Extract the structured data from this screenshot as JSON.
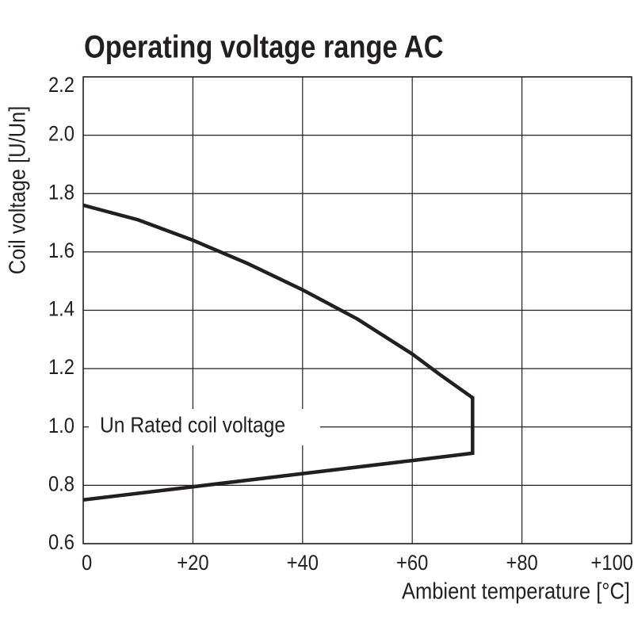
{
  "chart_data": {
    "type": "line",
    "title": "Operating voltage range AC",
    "x_label": "Ambient temperature [°C]",
    "y_label": "Coil voltage [U/Un]",
    "annotation": "Un Rated coil voltage",
    "x": [
      0,
      10,
      20,
      30,
      40,
      50,
      60,
      65,
      71,
      71,
      60,
      40,
      20,
      0
    ],
    "series": [
      {
        "color": "#231f20",
        "values": [
          1.76,
          1.71,
          1.64,
          1.56,
          1.47,
          1.37,
          1.25,
          1.18,
          1.1,
          0.91,
          0.885,
          0.84,
          0.795,
          0.75
        ]
      }
    ],
    "xlim": [
      0,
      100
    ],
    "xticks": [
      0,
      {
        "value": 20,
        "label": "+20"
      },
      {
        "value": 40,
        "label": "+40"
      },
      {
        "value": 60,
        "label": "+60"
      },
      {
        "value": 80,
        "label": "+80"
      },
      {
        "value": 100,
        "label": "+100"
      }
    ],
    "ylim": [
      0.6,
      2.2
    ],
    "yticks": [
      0.6,
      0.8,
      {
        "value": 1,
        "label": "1.0"
      },
      1.2,
      1.4,
      1.6,
      1.8,
      {
        "value": 2,
        "label": "2.0"
      },
      2.2
    ],
    "grid": true
  }
}
